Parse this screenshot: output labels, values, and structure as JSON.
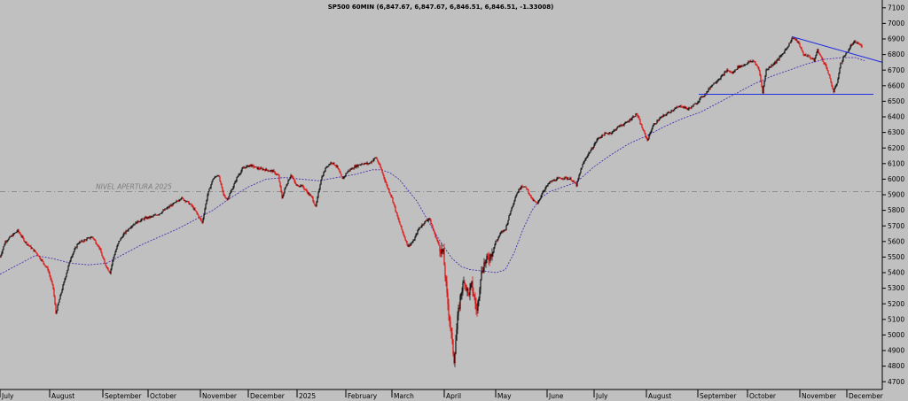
{
  "chart_data": {
    "type": "candlestick",
    "title": "SP500 60MIN (6,847.67, 6,847.67, 6,846.51, 6,846.51, -1.33008)",
    "ylim": [
      4650,
      7150
    ],
    "y_ticks": [
      4700,
      4800,
      4900,
      5000,
      5100,
      5200,
      5300,
      5400,
      5500,
      5600,
      5700,
      5800,
      5900,
      6000,
      6100,
      6200,
      6300,
      6400,
      6500,
      6600,
      6700,
      6800,
      6900,
      7000,
      7100
    ],
    "x_months": [
      {
        "label": "July",
        "t": 0
      },
      {
        "label": "August",
        "t": 56
      },
      {
        "label": "September",
        "t": 116
      },
      {
        "label": "October",
        "t": 167
      },
      {
        "label": "November",
        "t": 226
      },
      {
        "label": "December",
        "t": 280
      },
      {
        "label": "2025",
        "t": 335
      },
      {
        "label": "February",
        "t": 390
      },
      {
        "label": "March",
        "t": 442
      },
      {
        "label": "April",
        "t": 501
      },
      {
        "label": "May",
        "t": 559
      },
      {
        "label": "June",
        "t": 617
      },
      {
        "label": "July",
        "t": 670
      },
      {
        "label": "August",
        "t": 729
      },
      {
        "label": "September",
        "t": 787
      },
      {
        "label": "October",
        "t": 843
      },
      {
        "label": "November",
        "t": 902
      },
      {
        "label": "December",
        "t": 955
      }
    ],
    "t_range": [
      0,
      995
    ],
    "price_path": [
      [
        0,
        5500
      ],
      [
        6,
        5600
      ],
      [
        20,
        5670
      ],
      [
        28,
        5600
      ],
      [
        35,
        5560
      ],
      [
        42,
        5520
      ],
      [
        48,
        5470
      ],
      [
        54,
        5420
      ],
      [
        60,
        5300
      ],
      [
        63,
        5140
      ],
      [
        68,
        5250
      ],
      [
        74,
        5380
      ],
      [
        80,
        5500
      ],
      [
        88,
        5590
      ],
      [
        96,
        5610
      ],
      [
        104,
        5630
      ],
      [
        112,
        5560
      ],
      [
        118,
        5460
      ],
      [
        124,
        5400
      ],
      [
        128,
        5500
      ],
      [
        134,
        5600
      ],
      [
        140,
        5650
      ],
      [
        148,
        5700
      ],
      [
        156,
        5730
      ],
      [
        164,
        5750
      ],
      [
        172,
        5760
      ],
      [
        180,
        5780
      ],
      [
        190,
        5820
      ],
      [
        198,
        5850
      ],
      [
        204,
        5880
      ],
      [
        210,
        5860
      ],
      [
        216,
        5830
      ],
      [
        222,
        5780
      ],
      [
        228,
        5720
      ],
      [
        234,
        5900
      ],
      [
        240,
        6000
      ],
      [
        246,
        6030
      ],
      [
        252,
        5900
      ],
      [
        256,
        5870
      ],
      [
        262,
        5940
      ],
      [
        268,
        6020
      ],
      [
        274,
        6070
      ],
      [
        282,
        6090
      ],
      [
        290,
        6070
      ],
      [
        300,
        6060
      ],
      [
        308,
        6050
      ],
      [
        314,
        6020
      ],
      [
        318,
        5880
      ],
      [
        322,
        5950
      ],
      [
        328,
        6030
      ],
      [
        334,
        5960
      ],
      [
        340,
        5960
      ],
      [
        346,
        5920
      ],
      [
        352,
        5880
      ],
      [
        356,
        5820
      ],
      [
        362,
        6000
      ],
      [
        368,
        6080
      ],
      [
        374,
        6110
      ],
      [
        380,
        6080
      ],
      [
        386,
        6000
      ],
      [
        392,
        6050
      ],
      [
        400,
        6080
      ],
      [
        408,
        6100
      ],
      [
        416,
        6100
      ],
      [
        424,
        6140
      ],
      [
        430,
        6060
      ],
      [
        436,
        5960
      ],
      [
        442,
        5880
      ],
      [
        448,
        5760
      ],
      [
        454,
        5660
      ],
      [
        460,
        5570
      ],
      [
        466,
        5600
      ],
      [
        472,
        5680
      ],
      [
        478,
        5720
      ],
      [
        484,
        5750
      ],
      [
        490,
        5650
      ],
      [
        496,
        5560
      ],
      [
        500,
        5520
      ],
      [
        504,
        5250
      ],
      [
        508,
        5050
      ],
      [
        512,
        4840
      ],
      [
        516,
        5100
      ],
      [
        520,
        5280
      ],
      [
        524,
        5350
      ],
      [
        528,
        5260
      ],
      [
        532,
        5320
      ],
      [
        536,
        5200
      ],
      [
        538,
        5150
      ],
      [
        542,
        5380
      ],
      [
        546,
        5460
      ],
      [
        552,
        5500
      ],
      [
        558,
        5580
      ],
      [
        564,
        5650
      ],
      [
        570,
        5680
      ],
      [
        576,
        5800
      ],
      [
        582,
        5900
      ],
      [
        588,
        5960
      ],
      [
        594,
        5940
      ],
      [
        600,
        5870
      ],
      [
        606,
        5840
      ],
      [
        612,
        5920
      ],
      [
        620,
        5980
      ],
      [
        628,
        6000
      ],
      [
        636,
        6010
      ],
      [
        644,
        6000
      ],
      [
        650,
        5960
      ],
      [
        656,
        6080
      ],
      [
        662,
        6150
      ],
      [
        668,
        6200
      ],
      [
        674,
        6260
      ],
      [
        682,
        6290
      ],
      [
        690,
        6300
      ],
      [
        698,
        6340
      ],
      [
        706,
        6360
      ],
      [
        712,
        6390
      ],
      [
        718,
        6420
      ],
      [
        724,
        6330
      ],
      [
        730,
        6250
      ],
      [
        736,
        6340
      ],
      [
        744,
        6390
      ],
      [
        752,
        6420
      ],
      [
        760,
        6450
      ],
      [
        768,
        6470
      ],
      [
        776,
        6450
      ],
      [
        784,
        6480
      ],
      [
        790,
        6520
      ],
      [
        796,
        6550
      ],
      [
        802,
        6600
      ],
      [
        808,
        6630
      ],
      [
        814,
        6660
      ],
      [
        820,
        6700
      ],
      [
        826,
        6680
      ],
      [
        832,
        6720
      ],
      [
        838,
        6730
      ],
      [
        844,
        6750
      ],
      [
        850,
        6760
      ],
      [
        856,
        6700
      ],
      [
        860,
        6560
      ],
      [
        864,
        6700
      ],
      [
        870,
        6730
      ],
      [
        876,
        6760
      ],
      [
        882,
        6800
      ],
      [
        888,
        6850
      ],
      [
        894,
        6910
      ],
      [
        900,
        6880
      ],
      [
        906,
        6800
      ],
      [
        912,
        6790
      ],
      [
        918,
        6760
      ],
      [
        922,
        6830
      ],
      [
        926,
        6780
      ],
      [
        932,
        6720
      ],
      [
        936,
        6640
      ],
      [
        940,
        6560
      ],
      [
        944,
        6620
      ],
      [
        948,
        6740
      ],
      [
        952,
        6790
      ],
      [
        956,
        6820
      ],
      [
        960,
        6860
      ],
      [
        964,
        6880
      ],
      [
        968,
        6870
      ],
      [
        972,
        6850
      ]
    ],
    "moving_average": [
      [
        0,
        5390
      ],
      [
        20,
        5450
      ],
      [
        40,
        5510
      ],
      [
        60,
        5490
      ],
      [
        80,
        5460
      ],
      [
        100,
        5450
      ],
      [
        120,
        5460
      ],
      [
        140,
        5520
      ],
      [
        160,
        5580
      ],
      [
        180,
        5630
      ],
      [
        200,
        5680
      ],
      [
        220,
        5740
      ],
      [
        240,
        5800
      ],
      [
        260,
        5880
      ],
      [
        280,
        5950
      ],
      [
        300,
        6000
      ],
      [
        320,
        6010
      ],
      [
        340,
        6000
      ],
      [
        360,
        5990
      ],
      [
        380,
        6010
      ],
      [
        400,
        6030
      ],
      [
        420,
        6060
      ],
      [
        430,
        6060
      ],
      [
        440,
        6040
      ],
      [
        450,
        6000
      ],
      [
        460,
        5930
      ],
      [
        470,
        5860
      ],
      [
        480,
        5760
      ],
      [
        490,
        5660
      ],
      [
        500,
        5570
      ],
      [
        510,
        5490
      ],
      [
        520,
        5440
      ],
      [
        530,
        5420
      ],
      [
        545,
        5410
      ],
      [
        560,
        5400
      ],
      [
        570,
        5420
      ],
      [
        580,
        5530
      ],
      [
        590,
        5680
      ],
      [
        600,
        5800
      ],
      [
        610,
        5880
      ],
      [
        620,
        5920
      ],
      [
        630,
        5940
      ],
      [
        640,
        5960
      ],
      [
        650,
        5980
      ],
      [
        670,
        6080
      ],
      [
        690,
        6160
      ],
      [
        710,
        6230
      ],
      [
        730,
        6280
      ],
      [
        750,
        6340
      ],
      [
        770,
        6390
      ],
      [
        790,
        6430
      ],
      [
        810,
        6490
      ],
      [
        830,
        6550
      ],
      [
        850,
        6610
      ],
      [
        870,
        6660
      ],
      [
        890,
        6700
      ],
      [
        910,
        6740
      ],
      [
        930,
        6770
      ],
      [
        950,
        6780
      ],
      [
        965,
        6780
      ],
      [
        975,
        6760
      ]
    ],
    "reference_lines": [
      {
        "label": "NIVEL APERTURA 2025",
        "value": 5920
      }
    ],
    "trend_lines": [
      {
        "from": [
          893,
          6915
        ],
        "to": [
          995,
          6750
        ],
        "color": "#1f2fe0"
      },
      {
        "from": [
          788,
          6545
        ],
        "to": [
          985,
          6545
        ],
        "color": "#1f2fe0"
      }
    ],
    "colors": {
      "background": "#c0c0c0",
      "up_candle": "#000000",
      "down_candle": "#e00000",
      "moving_average": "#5030b0",
      "reference_line": "#7c7c7c",
      "trend_line": "#1f2fe0",
      "axis": "#000000"
    },
    "grid": false
  }
}
